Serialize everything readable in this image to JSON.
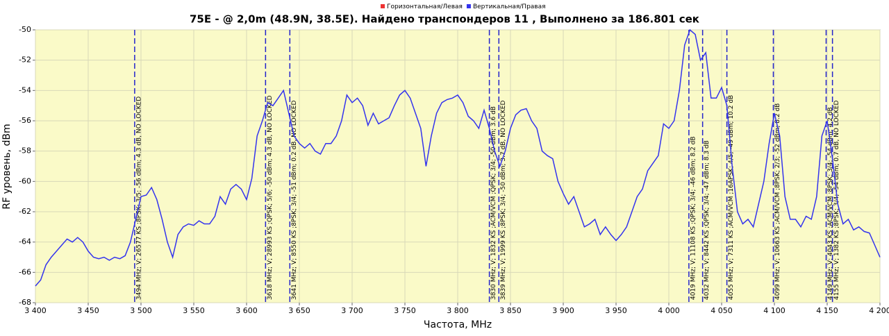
{
  "chart_data": {
    "type": "line",
    "title": "75E -  @ 2,0m (48.9N, 38.5E). Найдено транспондеров 11 , Выполнено за 186.801 сек",
    "x_label": "Частота, MHz",
    "y_label": "RF уровень, dBm",
    "xlim": [
      3400,
      4200
    ],
    "ylim": [
      -68,
      -50
    ],
    "grid": true,
    "legend": "top",
    "xticks": [
      {
        "value": 3400,
        "label": "3 400"
      },
      {
        "value": 3450,
        "label": "3 450"
      },
      {
        "value": 3500,
        "label": "3 500"
      },
      {
        "value": 3550,
        "label": "3 550"
      },
      {
        "value": 3600,
        "label": "3 600"
      },
      {
        "value": 3650,
        "label": "3 650"
      },
      {
        "value": 3700,
        "label": "3 700"
      },
      {
        "value": 3750,
        "label": "3 750"
      },
      {
        "value": 3800,
        "label": "3 800"
      },
      {
        "value": 3850,
        "label": "3 850"
      },
      {
        "value": 3900,
        "label": "3 900"
      },
      {
        "value": 3950,
        "label": "3 950"
      },
      {
        "value": 4000,
        "label": "4 000"
      },
      {
        "value": 4050,
        "label": "4 050"
      },
      {
        "value": 4100,
        "label": "4 100"
      },
      {
        "value": 4150,
        "label": "4 150"
      },
      {
        "value": 4200,
        "label": "4 200"
      }
    ],
    "yticks": [
      -50,
      -52,
      -54,
      -56,
      -58,
      -60,
      -62,
      -64,
      -66,
      -68
    ],
    "x": [
      3400,
      3405,
      3410,
      3415,
      3420,
      3425,
      3430,
      3435,
      3440,
      3445,
      3450,
      3455,
      3460,
      3465,
      3470,
      3475,
      3480,
      3485,
      3490,
      3495,
      3500,
      3505,
      3510,
      3515,
      3520,
      3525,
      3530,
      3535,
      3540,
      3545,
      3550,
      3555,
      3560,
      3565,
      3570,
      3575,
      3580,
      3585,
      3590,
      3595,
      3600,
      3605,
      3610,
      3615,
      3620,
      3625,
      3630,
      3635,
      3640,
      3645,
      3650,
      3655,
      3660,
      3665,
      3670,
      3675,
      3680,
      3685,
      3690,
      3695,
      3700,
      3705,
      3710,
      3715,
      3720,
      3725,
      3730,
      3735,
      3740,
      3745,
      3750,
      3755,
      3760,
      3765,
      3770,
      3775,
      3780,
      3785,
      3790,
      3795,
      3800,
      3805,
      3810,
      3815,
      3820,
      3825,
      3830,
      3835,
      3840,
      3845,
      3850,
      3855,
      3860,
      3865,
      3870,
      3875,
      3880,
      3885,
      3890,
      3895,
      3900,
      3905,
      3910,
      3915,
      3920,
      3925,
      3930,
      3935,
      3940,
      3945,
      3950,
      3955,
      3960,
      3965,
      3970,
      3975,
      3980,
      3985,
      3990,
      3995,
      4000,
      4005,
      4010,
      4015,
      4020,
      4025,
      4030,
      4035,
      4040,
      4045,
      4050,
      4055,
      4060,
      4065,
      4070,
      4075,
      4080,
      4085,
      4090,
      4095,
      4100,
      4105,
      4110,
      4115,
      4120,
      4125,
      4130,
      4135,
      4140,
      4145,
      4150,
      4155,
      4160,
      4165,
      4170,
      4175,
      4180,
      4185,
      4190,
      4195,
      4200
    ],
    "series": [
      {
        "name": "Горизонтальная/Левая",
        "color": "#ee3333",
        "values": [
          null,
          null,
          null,
          null,
          null,
          null,
          null,
          null,
          null,
          null,
          null,
          null,
          null,
          null,
          null,
          null,
          null,
          null,
          null,
          null,
          null,
          null,
          null,
          null,
          null,
          null,
          null,
          null,
          null,
          null,
          null,
          null,
          null,
          null,
          null,
          null,
          null,
          null,
          null,
          null,
          null,
          null,
          null,
          null,
          null,
          null,
          null,
          null,
          null,
          null,
          null,
          null,
          null,
          null,
          null,
          null,
          null,
          null,
          null,
          null,
          null,
          null,
          null,
          null,
          null,
          null,
          null,
          null,
          null,
          null,
          null,
          null,
          null,
          null,
          null,
          null,
          null,
          null,
          null,
          null,
          null,
          null,
          null,
          null,
          null,
          null,
          null,
          null,
          null,
          null,
          null,
          null,
          null,
          null,
          null,
          null,
          null,
          null,
          null,
          null,
          null,
          null,
          null,
          null,
          null,
          null,
          null,
          null,
          null,
          null,
          null,
          null,
          null,
          null,
          null,
          null,
          null,
          null,
          null,
          null,
          null,
          null,
          null,
          null,
          null,
          null,
          null,
          null,
          null,
          null,
          null,
          null,
          null,
          null,
          null,
          null,
          null,
          null,
          null,
          null,
          null,
          null,
          null,
          null,
          null,
          null,
          null,
          null,
          null,
          null,
          null,
          null,
          null,
          null,
          null,
          null,
          null,
          null,
          null,
          null,
          null
        ]
      },
      {
        "name": "Вертикальная/Правая",
        "color": "#3333ee",
        "values": [
          -66.9,
          -66.5,
          -65.5,
          -65.0,
          -64.6,
          -64.2,
          -63.8,
          -64.0,
          -63.7,
          -64.0,
          -64.6,
          -65.0,
          -65.1,
          -65.0,
          -65.2,
          -65.0,
          -65.1,
          -64.9,
          -64.0,
          -62.5,
          -61.0,
          -60.9,
          -60.4,
          -61.2,
          -62.5,
          -64.0,
          -65.0,
          -63.5,
          -63.0,
          -62.8,
          -62.9,
          -62.6,
          -62.8,
          -62.8,
          -62.3,
          -61.0,
          -61.5,
          -60.5,
          -60.2,
          -60.5,
          -61.2,
          -59.8,
          -57.0,
          -56.0,
          -54.8,
          -55.0,
          -54.5,
          -54.0,
          -55.5,
          -57.0,
          -57.5,
          -57.8,
          -57.5,
          -58.0,
          -58.2,
          -57.5,
          -57.5,
          -57.0,
          -56.0,
          -54.3,
          -54.8,
          -54.5,
          -55.0,
          -56.3,
          -55.5,
          -56.2,
          -56.0,
          -55.8,
          -55.0,
          -54.3,
          -54.0,
          -54.5,
          -55.5,
          -56.5,
          -59.0,
          -57.0,
          -55.5,
          -54.8,
          -54.6,
          -54.5,
          -54.3,
          -54.8,
          -55.7,
          -56.0,
          -56.5,
          -55.3,
          -56.5,
          -58.0,
          -59.0,
          -58.0,
          -56.5,
          -55.6,
          -55.3,
          -55.2,
          -56.0,
          -56.5,
          -58.0,
          -58.3,
          -58.5,
          -60.0,
          -60.8,
          -61.5,
          -61.0,
          -62.0,
          -63.0,
          -62.8,
          -62.5,
          -63.5,
          -63.0,
          -63.5,
          -63.9,
          -63.5,
          -63.0,
          -62.0,
          -61.0,
          -60.5,
          -59.3,
          -58.8,
          -58.3,
          -56.2,
          -56.5,
          -56.0,
          -54.0,
          -51.0,
          -50.0,
          -50.3,
          -52.0,
          -51.5,
          -54.5,
          -54.5,
          -53.8,
          -55.0,
          -59.0,
          -62.0,
          -62.8,
          -62.5,
          -63.0,
          -61.5,
          -60.0,
          -57.5,
          -55.5,
          -57.0,
          -61.0,
          -62.5,
          -62.5,
          -63.0,
          -62.3,
          -62.5,
          -61.0,
          -57.0,
          -56.0,
          -58.5,
          -61.5,
          -62.8,
          -62.5,
          -63.2,
          -63.0,
          -63.3,
          -63.4,
          -64.2,
          -65.0
        ]
      }
    ],
    "markers": [
      {
        "x": 3494,
        "label": "3494 MHz; V; 26577 KS ;8PSK; 3/5; -56 dBm; 4.3 dB, NO LOCKED"
      },
      {
        "x": 3618,
        "label": "3618 MHz; V; 28993 KS ;QPSK; 5/6; -50 dBm; 4.3 dB, NO LOCKED"
      },
      {
        "x": 3641,
        "label": "3641 MHz; V; 8550 KS ;8PSK; 3/4; -51 dBm; 0.2 dB, NO LOCKED"
      },
      {
        "x": 3830,
        "label": "3830 MHz; V; 1832 KS ;ACM/VCM ;QPSK; 3/4; -50 dBm; 3.6 dB"
      },
      {
        "x": 3839,
        "label": "3839 MHz; V; 1999 KS ;8PSK; 3/4; -50 dBm; 3.7 dB, NO LOCKED"
      },
      {
        "x": 4019,
        "label": "4019 MHz; V; 11108 KS ;QPSK; 3/4; -46 dBm; 8.2 dB"
      },
      {
        "x": 4032,
        "label": "4032 MHz; V; 8442 KS ;QPSK; 3/4; -47 dBm; 8.3 dB"
      },
      {
        "x": 4055,
        "label": "4055 MHz; V; 7311 KS ;ACM/VCM ;16APSK; 4/5; -49 dBm; 10.2 dB"
      },
      {
        "x": 4099,
        "label": "4099 MHz; V; 10663 KS ;ACM/VCM ;8PSK; 2/3; -52 dBm; 8.2 dB"
      },
      {
        "x": 4149,
        "label": "4149 MHz; V; 4043 KS ;ACM/VCM ;8PSK; 3/4; -54 dBm; 4.2 dB"
      },
      {
        "x": 4155,
        "label": "4155 MHz; V; 1382 KS ;8PSK; 3/4; -54 dBm; 0.7 dB, NO LOCKED"
      }
    ]
  }
}
